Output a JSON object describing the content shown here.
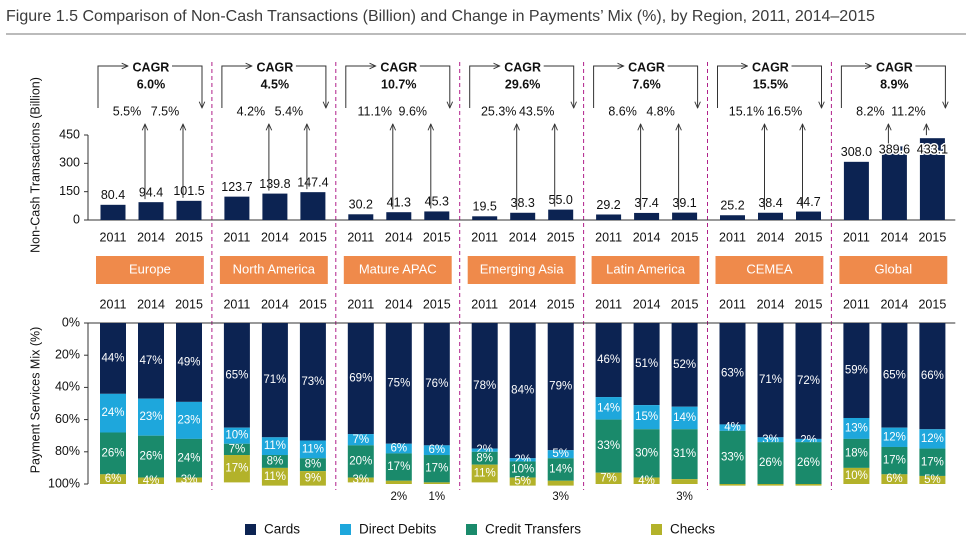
{
  "title": "Figure 1.5 Comparison of Non-Cash Transactions (Billion) and Change in Payments’ Mix (%), by Region, 2011, 2014–2015",
  "chart_data": [
    {
      "type": "bar",
      "ylabel": "Non-Cash Transactions (Billion)",
      "categories": [
        "2011",
        "2014",
        "2015"
      ],
      "ylim": [
        0,
        450
      ],
      "yticks": [
        0,
        150,
        300,
        450
      ],
      "color": "#0c2352",
      "groups": [
        {
          "name": "Europe",
          "values": [
            80.4,
            94.4,
            101.5
          ],
          "value_labels": [
            "80.4",
            "94.4",
            "101.5"
          ],
          "cagr_label": "CAGR",
          "cagr": "6.0%",
          "growth": [
            "5.5%",
            "7.5%"
          ]
        },
        {
          "name": "North America",
          "values": [
            123.7,
            139.8,
            147.4
          ],
          "value_labels": [
            "123.7",
            "139.8",
            "147.4"
          ],
          "cagr_label": "CAGR",
          "cagr": "4.5%",
          "growth": [
            "4.2%",
            "5.4%"
          ]
        },
        {
          "name": "Mature APAC",
          "values": [
            30.2,
            41.3,
            45.3
          ],
          "value_labels": [
            "30.2",
            "41.3",
            "45.3"
          ],
          "cagr_label": "CAGR",
          "cagr": "10.7%",
          "growth": [
            "11.1%",
            "9.6%"
          ]
        },
        {
          "name": "Emerging Asia",
          "values": [
            19.5,
            38.3,
            55.0
          ],
          "value_labels": [
            "19.5",
            "38.3",
            "55.0"
          ],
          "cagr_label": "CAGR",
          "cagr": "29.6%",
          "growth": [
            "25.3%",
            "43.5%"
          ]
        },
        {
          "name": "Latin America",
          "values": [
            29.2,
            37.4,
            39.1
          ],
          "value_labels": [
            "29.2",
            "37.4",
            "39.1"
          ],
          "cagr_label": "CAGR",
          "cagr": "7.6%",
          "growth": [
            "8.6%",
            "4.8%"
          ]
        },
        {
          "name": "CEMEA",
          "values": [
            25.2,
            38.4,
            44.7
          ],
          "value_labels": [
            "25.2",
            "38.4",
            "44.7"
          ],
          "cagr_label": "CAGR",
          "cagr": "15.5%",
          "growth": [
            "15.1%",
            "16.5%"
          ]
        },
        {
          "name": "Global",
          "values": [
            308.0,
            389.6,
            433.1
          ],
          "value_labels": [
            "308.0",
            "389.6",
            "433.1"
          ],
          "cagr_label": "CAGR",
          "cagr": "8.9%",
          "growth": [
            "8.2%",
            "11.2%"
          ]
        }
      ]
    },
    {
      "type": "stacked_percent_bar",
      "ylabel": "Payment Services Mix (%)",
      "categories": [
        "2011",
        "2014",
        "2015"
      ],
      "ylim": [
        0,
        100
      ],
      "y_inverted": true,
      "legend": "bottom",
      "yticks": [
        {
          "value": 0,
          "label": "0%"
        },
        {
          "value": 20,
          "label": "20%"
        },
        {
          "value": 40,
          "label": "40%"
        },
        {
          "value": 60,
          "label": "60%"
        },
        {
          "value": 80,
          "label": "80%"
        },
        {
          "value": 100,
          "label": "100%"
        }
      ],
      "series": [
        {
          "name": "Cards",
          "color": "#0c2352",
          "values": [
            [
              44,
              47,
              49
            ],
            [
              65,
              71,
              73
            ],
            [
              69,
              75,
              76
            ],
            [
              78,
              84,
              79
            ],
            [
              46,
              51,
              52
            ],
            [
              63,
              71,
              72
            ],
            [
              59,
              65,
              66
            ]
          ],
          "value_labels": [
            [
              "44%",
              "47%",
              "49%"
            ],
            [
              "65%",
              "71%",
              "73%"
            ],
            [
              "69%",
              "75%",
              "76%"
            ],
            [
              "78%",
              "84%",
              "79%"
            ],
            [
              "46%",
              "51%",
              "52%"
            ],
            [
              "63%",
              "71%",
              "72%"
            ],
            [
              "59%",
              "65%",
              "66%"
            ]
          ]
        },
        {
          "name": "Direct Debits",
          "color": "#1ea7dc",
          "values": [
            [
              24,
              23,
              23
            ],
            [
              10,
              11,
              11
            ],
            [
              7,
              6,
              6
            ],
            [
              2,
              2,
              5
            ],
            [
              14,
              15,
              14
            ],
            [
              4,
              3,
              2
            ],
            [
              13,
              12,
              12
            ]
          ],
          "value_labels": [
            [
              "24%",
              "23%",
              "23%"
            ],
            [
              "10%",
              "11%",
              "11%"
            ],
            [
              "7%",
              "6%",
              "6%"
            ],
            [
              "2%",
              "2%",
              "5%"
            ],
            [
              "14%",
              "15%",
              "14%"
            ],
            [
              "4%",
              "3%",
              "2%"
            ],
            [
              "13%",
              "12%",
              "12%"
            ]
          ]
        },
        {
          "name": "Credit Transfers",
          "color": "#1a8a6b",
          "values": [
            [
              26,
              26,
              24
            ],
            [
              7,
              8,
              8
            ],
            [
              20,
              17,
              17
            ],
            [
              8,
              10,
              14
            ],
            [
              33,
              30,
              31
            ],
            [
              33,
              26,
              26
            ],
            [
              18,
              17,
              17
            ]
          ],
          "value_labels": [
            [
              "26%",
              "26%",
              "24%"
            ],
            [
              "7%",
              "8%",
              "8%"
            ],
            [
              "20%",
              "17%",
              "17%"
            ],
            [
              "8%",
              "10%",
              "14%"
            ],
            [
              "33%",
              "30%",
              "31%"
            ],
            [
              "33%",
              "26%",
              "26%"
            ],
            [
              "18%",
              "17%",
              "17%"
            ]
          ]
        },
        {
          "name": "Checks",
          "color": "#b3b22a",
          "values": [
            [
              6,
              4,
              3
            ],
            [
              17,
              11,
              9
            ],
            [
              3,
              2,
              1
            ],
            [
              11,
              5,
              3
            ],
            [
              7,
              4,
              3
            ],
            [
              1,
              1,
              1
            ],
            [
              10,
              6,
              5
            ]
          ],
          "value_labels": [
            [
              "6%",
              "4%",
              "3%"
            ],
            [
              "17%",
              "11%",
              "9%"
            ],
            [
              "3%",
              "2%",
              "1%"
            ],
            [
              "11%",
              "5%",
              "3%"
            ],
            [
              "7%",
              "4%",
              "3%"
            ],
            [
              null,
              null,
              null
            ],
            [
              "10%",
              "6%",
              "5%"
            ]
          ]
        }
      ]
    }
  ]
}
